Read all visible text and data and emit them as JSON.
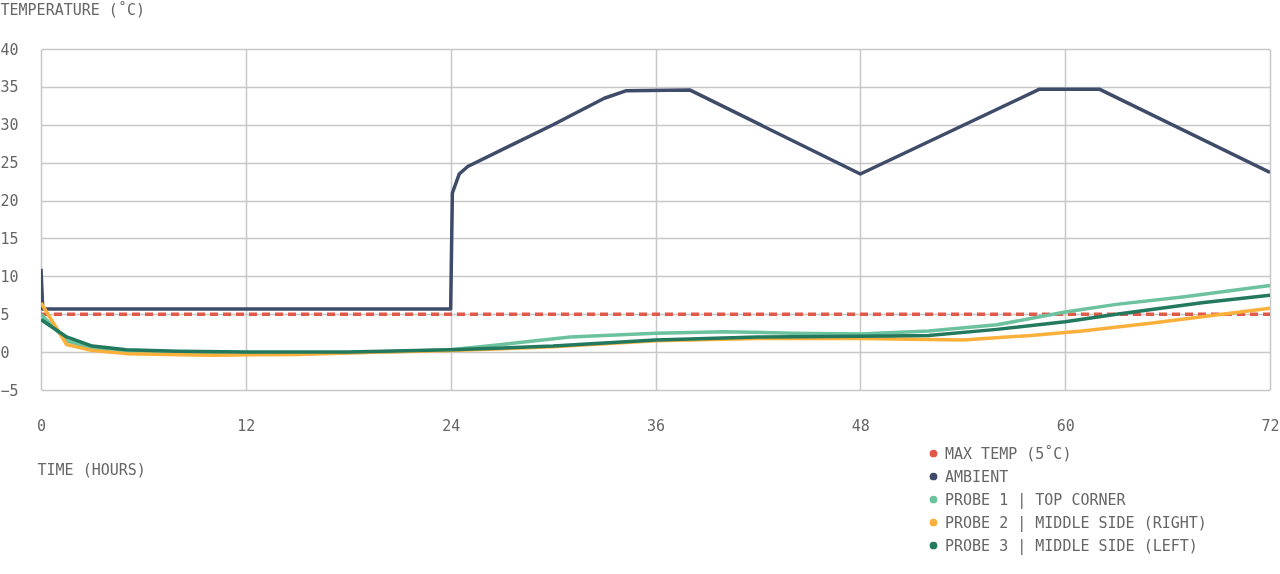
{
  "chart_data": {
    "type": "line",
    "xlabel": "TIME (HOURS)",
    "ylabel": "TEMPERATURE (˚C)",
    "xlim": [
      0,
      72
    ],
    "xticks": [
      0,
      12,
      24,
      36,
      48,
      60,
      72
    ],
    "ylim": [
      -5,
      40
    ],
    "yticks": [
      -5,
      0,
      5,
      10,
      15,
      20,
      25,
      30,
      35,
      40
    ],
    "grid": true,
    "legend": "bottom right",
    "series": [
      {
        "name": "MAX TEMP (5˚C)",
        "color": "#e05a4a",
        "line_style": "dashed",
        "x": [
          0,
          72
        ],
        "values": [
          5,
          5
        ]
      },
      {
        "name": "AMBIENT",
        "color": "#3e4c6a",
        "line_style": "solid",
        "x": [
          0,
          0.1,
          24,
          24.1,
          24.5,
          25,
          30,
          33,
          34.3,
          38,
          48,
          58.5,
          62,
          72
        ],
        "values": [
          11,
          5.7,
          5.7,
          21,
          23.5,
          24.5,
          30,
          33.5,
          34.5,
          34.6,
          23.5,
          34.7,
          34.7,
          23.7
        ]
      },
      {
        "name": "PROBE 1 | TOP CORNER",
        "color": "#6cc19e",
        "line_style": "solid",
        "x": [
          0,
          1.5,
          3,
          5,
          10,
          15,
          20,
          24,
          27,
          31,
          36,
          40,
          44,
          48,
          52,
          56,
          60,
          63,
          67,
          72
        ],
        "values": [
          5,
          1.5,
          0.5,
          0.1,
          -0.1,
          -0.2,
          0,
          0.3,
          1,
          2,
          2.5,
          2.7,
          2.5,
          2.4,
          2.8,
          3.6,
          5.3,
          6.3,
          7.3,
          8.8
        ]
      },
      {
        "name": "PROBE 2 | MIDDLE SIDE (RIGHT)",
        "color": "#fbb03b",
        "line_style": "solid",
        "x": [
          0,
          1.5,
          3,
          5,
          10,
          15,
          20,
          24,
          30,
          36,
          42,
          48,
          54,
          58,
          61,
          65,
          72
        ],
        "values": [
          6.5,
          1,
          0.2,
          -0.2,
          -0.4,
          -0.3,
          0,
          0.2,
          0.7,
          1.5,
          1.8,
          1.8,
          1.6,
          2.2,
          2.8,
          3.8,
          5.8
        ]
      },
      {
        "name": "PROBE 3 | MIDDLE SIDE (LEFT)",
        "color": "#22795e",
        "line_style": "solid",
        "x": [
          0,
          1.5,
          3,
          5,
          8,
          12,
          18,
          20,
          24,
          30,
          36,
          42,
          48,
          52,
          56,
          60,
          63,
          68,
          72
        ],
        "values": [
          4.3,
          2,
          0.8,
          0.3,
          0.1,
          0,
          0,
          0.1,
          0.3,
          0.8,
          1.6,
          2,
          2.1,
          2.2,
          3,
          4,
          5,
          6.5,
          7.5
        ]
      }
    ]
  }
}
